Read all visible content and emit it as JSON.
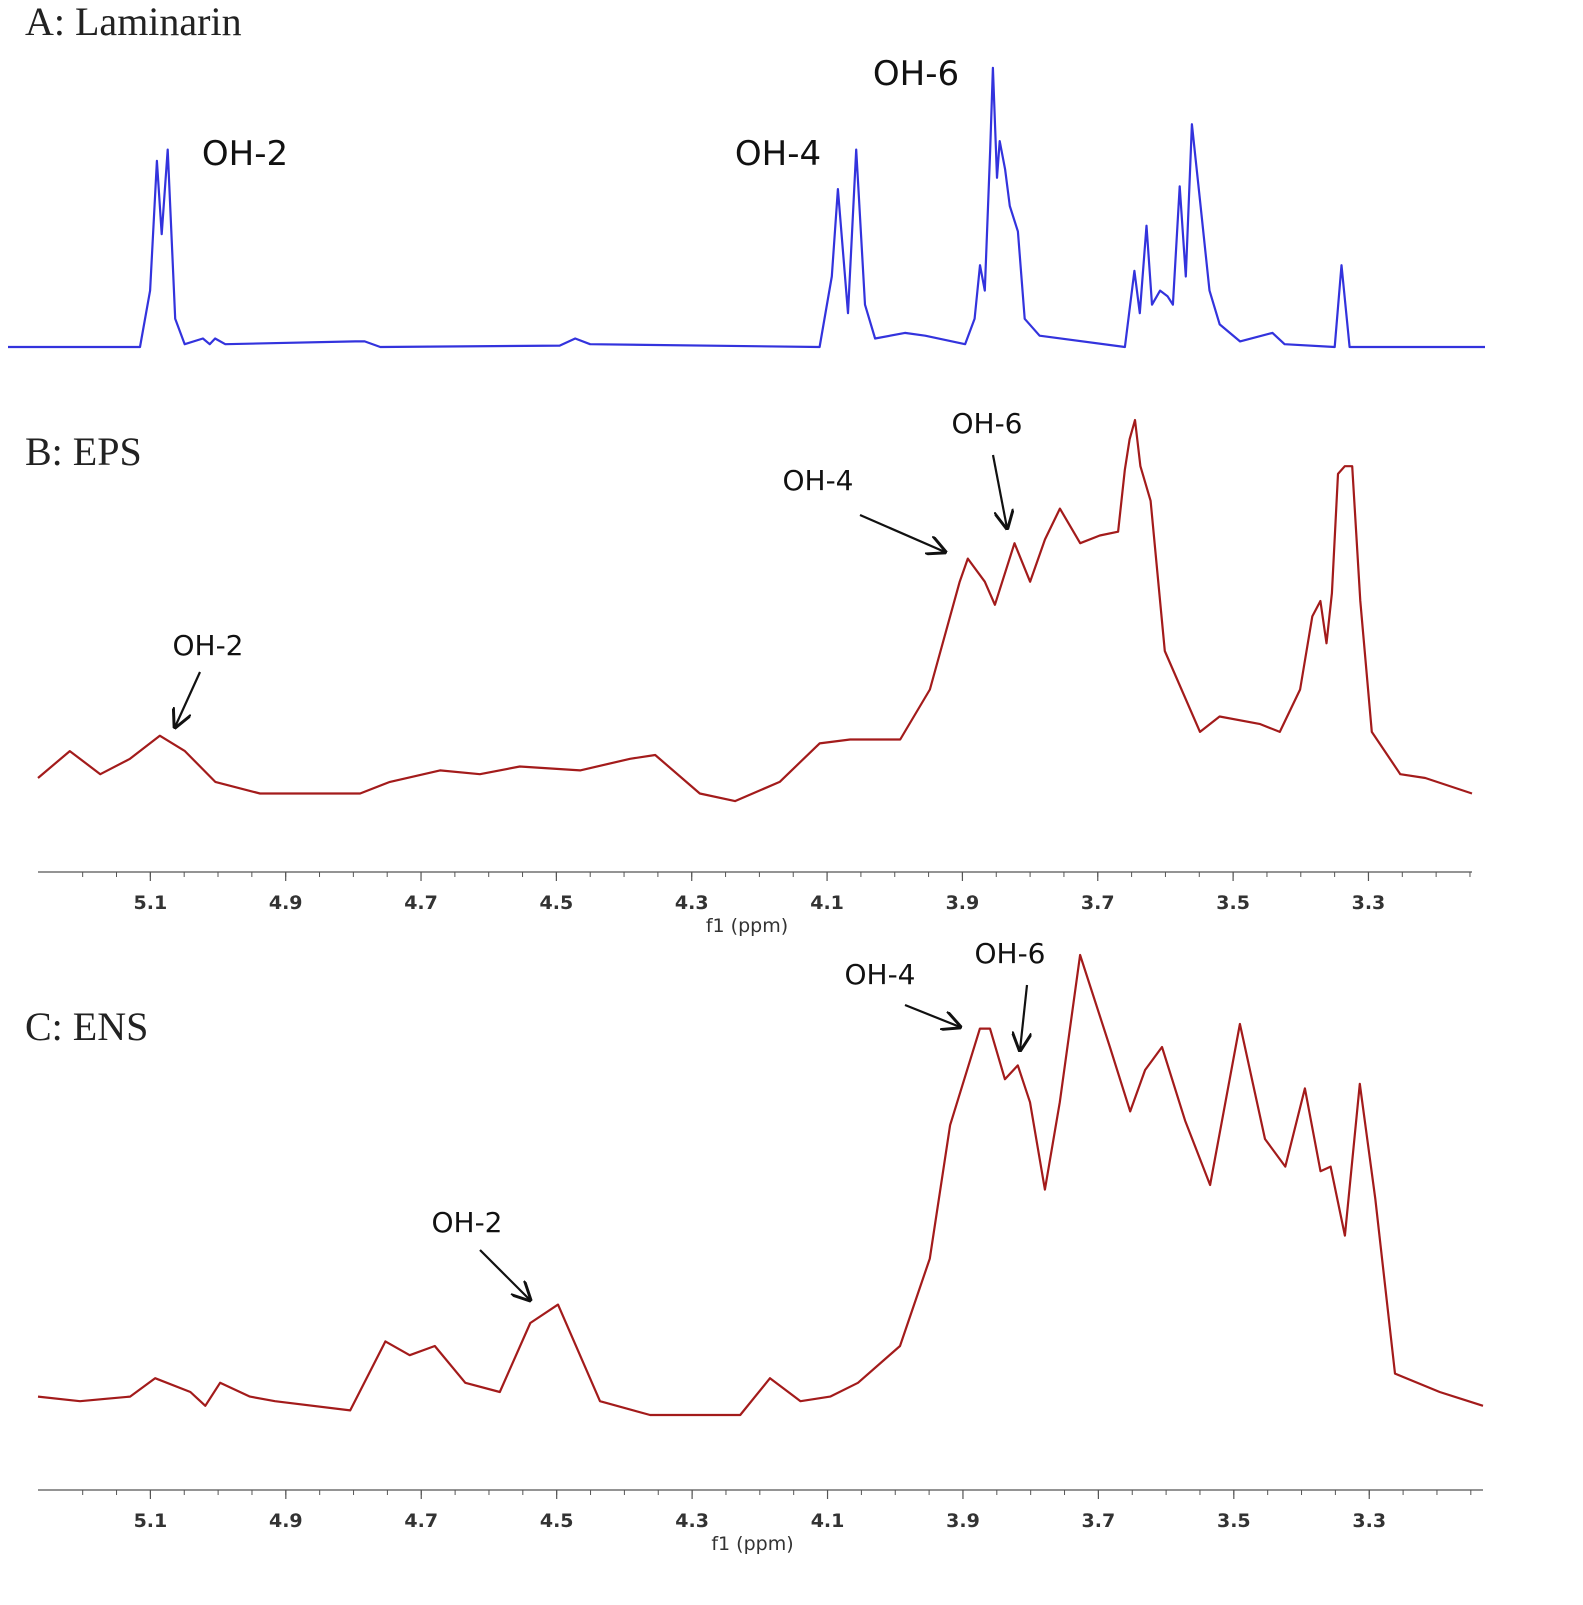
{
  "chart_data": [
    {
      "type": "line",
      "title": "A: Laminarin",
      "color": "#3333dd",
      "xlim": [
        5.28,
        3.098
      ],
      "ylim": [
        0,
        100
      ],
      "x": [
        5.28,
        5.085,
        5.07,
        5.06,
        5.053,
        5.044,
        5.033,
        5.019,
        4.992,
        4.982,
        4.974,
        4.959,
        4.767,
        4.753,
        4.73,
        4.465,
        4.442,
        4.42,
        4.081,
        4.063,
        4.054,
        4.039,
        4.027,
        4.014,
        3.999,
        3.955,
        3.925,
        3.866,
        3.852,
        3.844,
        3.837,
        3.829,
        3.825,
        3.819,
        3.815,
        3.807,
        3.8,
        3.788,
        3.778,
        3.756,
        3.63,
        3.616,
        3.608,
        3.598,
        3.59,
        3.578,
        3.567,
        3.559,
        3.549,
        3.54,
        3.531,
        3.519,
        3.505,
        3.49,
        3.46,
        3.412,
        3.394,
        3.32,
        3.31,
        3.298,
        3.098
      ],
      "values": [
        0,
        0,
        20,
        66,
        40,
        70,
        10,
        1,
        3,
        1,
        3,
        1,
        2,
        2,
        0,
        0.5,
        3,
        1,
        0,
        25,
        56,
        12,
        70,
        15,
        3,
        5,
        4,
        1,
        10,
        29,
        20,
        70,
        99,
        60,
        73,
        63,
        50,
        41,
        10,
        4,
        0,
        27,
        12,
        43,
        15,
        20,
        18,
        15,
        57,
        25,
        79,
        52,
        20,
        8,
        2,
        5,
        1,
        0,
        29,
        0,
        0
      ],
      "annotations": [
        {
          "text": "OH-2"
        },
        {
          "text": "OH-4"
        },
        {
          "text": "OH-6"
        }
      ]
    },
    {
      "type": "line",
      "title": "B: EPS",
      "color": "#a31b1b",
      "xlim": [
        5.266,
        3.147
      ],
      "ylim": [
        0,
        100
      ],
      "xlabel": "f1 (ppm)",
      "xticks": [
        5.1,
        4.9,
        4.7,
        4.5,
        4.3,
        4.1,
        3.9,
        3.7,
        3.5,
        3.3
      ],
      "x": [
        5.266,
        5.219,
        5.174,
        5.13,
        5.086,
        5.049,
        5.004,
        4.938,
        4.79,
        4.746,
        4.672,
        4.613,
        4.554,
        4.465,
        4.391,
        4.354,
        4.288,
        4.236,
        4.17,
        4.111,
        4.066,
        4.051,
        3.992,
        3.948,
        3.904,
        3.892,
        3.867,
        3.852,
        3.823,
        3.8,
        3.778,
        3.756,
        3.726,
        3.697,
        3.67,
        3.66,
        3.653,
        3.645,
        3.637,
        3.622,
        3.601,
        3.549,
        3.52,
        3.46,
        3.431,
        3.401,
        3.383,
        3.371,
        3.362,
        3.354,
        3.345,
        3.335,
        3.324,
        3.312,
        3.295,
        3.253,
        3.216,
        3.147
      ],
      "values": [
        7,
        14,
        8,
        12,
        18,
        14,
        6,
        3,
        3,
        6,
        9,
        8,
        10,
        9,
        12,
        13,
        3,
        1,
        6,
        16,
        17,
        17,
        17,
        30,
        58,
        64,
        58,
        52,
        68,
        58,
        69,
        77,
        68,
        70,
        71,
        87,
        95,
        100,
        88,
        79,
        40,
        19,
        23,
        21,
        19,
        30,
        49,
        53,
        42,
        55,
        86,
        88,
        88,
        53,
        19,
        8,
        7,
        3
      ],
      "annotations": [
        {
          "text": "OH-2"
        },
        {
          "text": "OH-4"
        },
        {
          "text": "OH-6"
        }
      ]
    },
    {
      "type": "line",
      "title": "C: ENS",
      "color": "#a31b1b",
      "xlim": [
        5.266,
        3.132
      ],
      "ylim": [
        0,
        100
      ],
      "xlabel": "f1 (ppm)",
      "xticks": [
        5.1,
        4.9,
        4.7,
        4.5,
        4.3,
        4.1,
        3.9,
        3.7,
        3.5,
        3.3
      ],
      "x": [
        5.266,
        5.204,
        5.13,
        5.093,
        5.041,
        5.019,
        4.997,
        4.953,
        4.916,
        4.805,
        4.753,
        4.717,
        4.68,
        4.635,
        4.584,
        4.539,
        4.498,
        4.436,
        4.362,
        4.259,
        4.229,
        4.185,
        4.14,
        4.096,
        4.055,
        3.993,
        3.949,
        3.919,
        3.875,
        3.86,
        3.838,
        3.819,
        3.801,
        3.779,
        3.757,
        3.727,
        3.683,
        3.653,
        3.631,
        3.606,
        3.572,
        3.535,
        3.491,
        3.454,
        3.424,
        3.395,
        3.372,
        3.357,
        3.336,
        3.314,
        3.291,
        3.262,
        3.196,
        3.132
      ],
      "values": [
        4,
        3,
        4,
        8,
        5,
        2,
        7,
        4,
        3,
        1,
        16,
        13,
        15,
        7,
        5,
        20,
        24,
        3,
        0,
        0,
        0,
        8,
        3,
        4,
        7,
        15,
        34,
        63,
        84,
        84,
        73,
        76,
        68,
        49,
        68,
        100,
        80,
        66,
        75,
        80,
        64,
        50,
        85,
        60,
        54,
        71,
        53,
        54,
        39,
        72,
        47,
        9,
        5,
        2
      ],
      "annotations": [
        {
          "text": "OH-2"
        },
        {
          "text": "OH-4"
        },
        {
          "text": "OH-6"
        }
      ]
    }
  ]
}
